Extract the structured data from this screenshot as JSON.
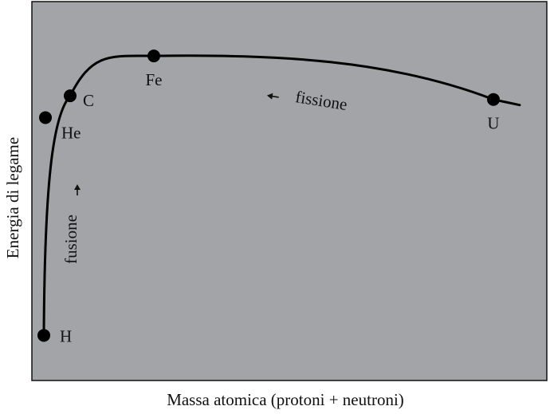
{
  "chart_data": {
    "type": "line",
    "title": "",
    "xlabel": "Massa atomica (protoni + neutroni)",
    "ylabel": "Energia di legame",
    "background_color": "#a2a4a7",
    "grid": false,
    "series": [
      {
        "points": [
          {
            "label": "H",
            "x": 1,
            "y": 1.1
          },
          {
            "label": "He",
            "x": 4,
            "y": 7.1
          },
          {
            "label": "C",
            "x": 12,
            "y": 7.7
          },
          {
            "label": "Fe",
            "x": 56,
            "y": 8.8
          },
          {
            "label": "U",
            "x": 238,
            "y": 7.6
          }
        ]
      }
    ],
    "annotations": [
      {
        "text": "fusione",
        "arrow": "→"
      },
      {
        "text": "fissione",
        "arrow": "←"
      }
    ]
  }
}
